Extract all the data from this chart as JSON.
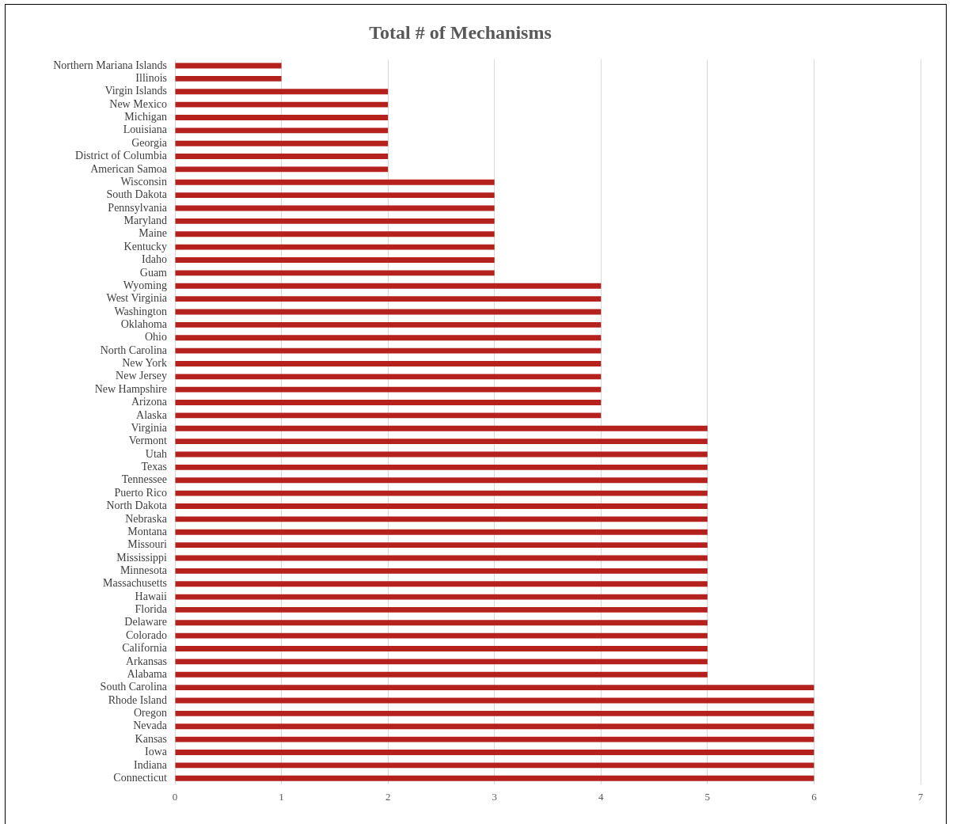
{
  "chart_data": {
    "type": "bar",
    "orientation": "horizontal",
    "title": "Total # of Mechanisms",
    "categories": [
      "Northern Mariana Islands",
      "Illinois",
      "Virgin Islands",
      "New Mexico",
      "Michigan",
      "Louisiana",
      "Georgia",
      "District of Columbia",
      "American Samoa",
      "Wisconsin",
      "South Dakota",
      "Pennsylvania",
      "Maryland",
      "Maine",
      "Kentucky",
      "Idaho",
      "Guam",
      "Wyoming",
      "West Virginia",
      "Washington",
      "Oklahoma",
      "Ohio",
      "North Carolina",
      "New York",
      "New Jersey",
      "New Hampshire",
      "Arizona",
      "Alaska",
      "Virginia",
      "Vermont",
      "Utah",
      "Texas",
      "Tennessee",
      "Puerto Rico",
      "North Dakota",
      "Nebraska",
      "Montana",
      "Missouri",
      "Mississippi",
      "Minnesota",
      "Massachusetts",
      "Hawaii",
      "Florida",
      "Delaware",
      "Colorado",
      "California",
      "Arkansas",
      "Alabama",
      "South Carolina",
      "Rhode Island",
      "Oregon",
      "Nevada",
      "Kansas",
      "Iowa",
      "Indiana",
      "Connecticut"
    ],
    "values": [
      1,
      1,
      2,
      2,
      2,
      2,
      2,
      2,
      2,
      3,
      3,
      3,
      3,
      3,
      3,
      3,
      3,
      4,
      4,
      4,
      4,
      4,
      4,
      4,
      4,
      4,
      4,
      4,
      5,
      5,
      5,
      5,
      5,
      5,
      5,
      5,
      5,
      5,
      5,
      5,
      5,
      5,
      5,
      5,
      5,
      5,
      5,
      5,
      6,
      6,
      6,
      6,
      6,
      6,
      6,
      6
    ],
    "color": "#b5211d",
    "xlim": [
      0,
      7
    ],
    "xticks": [
      0,
      1,
      2,
      3,
      4,
      5,
      6,
      7
    ],
    "grid": "x",
    "legend": false
  }
}
